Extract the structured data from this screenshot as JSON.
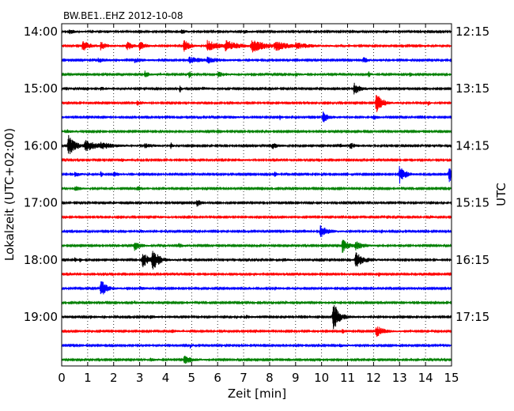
{
  "chart_data": {
    "type": "line",
    "title": "BW.BE1..EHZ 2012-10-08",
    "xlabel": "Zeit  [min]",
    "ylabel_left": "Lokalzeit (UTC+02:00)",
    "ylabel_right": "UTC",
    "xlim": [
      0,
      15
    ],
    "x_ticks": [
      "0",
      "1",
      "2",
      "3",
      "4",
      "5",
      "6",
      "7",
      "8",
      "9",
      "10",
      "11",
      "12",
      "13",
      "14",
      "15"
    ],
    "left_tick_labels": [
      "14:00",
      "15:00",
      "16:00",
      "17:00",
      "18:00",
      "19:00"
    ],
    "right_tick_labels": [
      "12:15",
      "13:15",
      "14:15",
      "15:15",
      "16:15",
      "17:15"
    ],
    "grid": true,
    "trace_minutes": 15,
    "color_cycle": [
      "#000000",
      "#ff0000",
      "#0000ff",
      "#008000"
    ],
    "traces": [
      {
        "events": [
          [
            0.3,
            3,
            0.2
          ],
          [
            1.7,
            2,
            0.15
          ],
          [
            4.6,
            2.5,
            0.2
          ],
          [
            7.0,
            2,
            0.2
          ],
          [
            12.5,
            1.5,
            0.15
          ]
        ]
      },
      {
        "events": [
          [
            0.8,
            7,
            0.25
          ],
          [
            1.5,
            5,
            0.2
          ],
          [
            2.5,
            6,
            0.2
          ],
          [
            3.0,
            5,
            0.2
          ],
          [
            4.7,
            8,
            0.2
          ],
          [
            5.6,
            7,
            0.4
          ],
          [
            6.3,
            7,
            0.4
          ],
          [
            7.3,
            8,
            0.5
          ],
          [
            8.2,
            5,
            0.5
          ],
          [
            9.0,
            3,
            0.5
          ]
        ]
      },
      {
        "events": [
          [
            1.4,
            3,
            0.3
          ],
          [
            2.8,
            3,
            0.3
          ],
          [
            4.9,
            4,
            0.5
          ],
          [
            5.6,
            3,
            0.4
          ],
          [
            11.6,
            4,
            0.15
          ]
        ]
      },
      {
        "events": [
          [
            3.2,
            4,
            0.15
          ],
          [
            4.9,
            5,
            0.08
          ],
          [
            6.0,
            3,
            0.3
          ],
          [
            9.0,
            2,
            0.2
          ],
          [
            11.8,
            4,
            0.08
          ],
          [
            13.4,
            3,
            0.08
          ]
        ]
      },
      {
        "events": [
          [
            4.55,
            5,
            0.06
          ],
          [
            11.25,
            8,
            0.2
          ],
          [
            5.4,
            2,
            0.2
          ],
          [
            1.5,
            2,
            0.2
          ]
        ]
      },
      {
        "events": [
          [
            2.9,
            3,
            0.2
          ],
          [
            12.1,
            14,
            0.2
          ],
          [
            14.1,
            4,
            0.06
          ]
        ]
      },
      {
        "events": [
          [
            1.5,
            2,
            0.2
          ],
          [
            6.5,
            2,
            0.2
          ],
          [
            8.4,
            4,
            0.06
          ],
          [
            10.05,
            7,
            0.2
          ],
          [
            12.0,
            3,
            0.15
          ]
        ]
      },
      {
        "events": [
          [
            0.2,
            2,
            0.2
          ],
          [
            6.0,
            2,
            0.2
          ]
        ]
      },
      {
        "events": [
          [
            0.25,
            14,
            0.25
          ],
          [
            0.9,
            6,
            0.5
          ],
          [
            1.5,
            3,
            0.4
          ],
          [
            3.2,
            3,
            0.3
          ],
          [
            4.2,
            4,
            0.06
          ],
          [
            8.1,
            4,
            0.2
          ],
          [
            11.1,
            4,
            0.2
          ],
          [
            10.7,
            3,
            0.1
          ]
        ]
      },
      {
        "events": [
          [
            2.3,
            2,
            0.2
          ],
          [
            6.8,
            2,
            0.2
          ]
        ]
      },
      {
        "events": [
          [
            0.5,
            3,
            0.2
          ],
          [
            1.5,
            4,
            0.06
          ],
          [
            2.0,
            3,
            0.2
          ],
          [
            8.2,
            4,
            0.06
          ],
          [
            13.0,
            12,
            0.2
          ],
          [
            14.9,
            10,
            0.2
          ]
        ]
      },
      {
        "events": [
          [
            0.5,
            3,
            0.2
          ],
          [
            2.9,
            3,
            0.2
          ],
          [
            3.9,
            2,
            0.1
          ]
        ]
      },
      {
        "events": [
          [
            2.0,
            2,
            0.1
          ],
          [
            3.0,
            2,
            0.1
          ],
          [
            5.2,
            5,
            0.15
          ],
          [
            9.8,
            1.5,
            0.2
          ]
        ]
      },
      {
        "events": [
          [
            3.7,
            1.5,
            0.2
          ],
          [
            14.2,
            2,
            0.08
          ]
        ]
      },
      {
        "events": [
          [
            3.0,
            2,
            0.2
          ],
          [
            9.3,
            2,
            0.2
          ],
          [
            9.95,
            8,
            0.25
          ],
          [
            12.3,
            2,
            0.1
          ]
        ]
      },
      {
        "events": [
          [
            2.8,
            6,
            0.2
          ],
          [
            4.5,
            3,
            0.15
          ],
          [
            10.8,
            9,
            0.2
          ],
          [
            11.3,
            5,
            0.3
          ]
        ]
      },
      {
        "events": [
          [
            0.5,
            3,
            0.06
          ],
          [
            0.7,
            3,
            0.06
          ],
          [
            3.1,
            10,
            0.25
          ],
          [
            3.5,
            14,
            0.2
          ],
          [
            8.5,
            2,
            0.2
          ],
          [
            11.3,
            10,
            0.3
          ],
          [
            14.3,
            2,
            0.1
          ]
        ]
      },
      {
        "events": [
          [
            7.4,
            2,
            0.1
          ],
          [
            12.2,
            3,
            0.06
          ]
        ]
      },
      {
        "events": [
          [
            1.5,
            12,
            0.2
          ],
          [
            3.0,
            2,
            0.2
          ],
          [
            8.2,
            2,
            0.2
          ]
        ]
      },
      {
        "events": [
          [
            2.8,
            2,
            0.08
          ],
          [
            8.6,
            3,
            0.06
          ],
          [
            10.0,
            2,
            0.06
          ]
        ]
      },
      {
        "events": [
          [
            10.45,
            24,
            0.08
          ],
          [
            10.55,
            7,
            0.3
          ],
          [
            1.1,
            2,
            0.2
          ],
          [
            3.4,
            2,
            0.2
          ],
          [
            7.1,
            2,
            0.2
          ]
        ]
      },
      {
        "events": [
          [
            4.2,
            2,
            0.2
          ],
          [
            10.8,
            3,
            0.1
          ],
          [
            12.1,
            8,
            0.25
          ]
        ]
      },
      {
        "events": [
          [
            3.2,
            1.5,
            0.1
          ],
          [
            4.95,
            3,
            0.06
          ],
          [
            10.7,
            2,
            0.2
          ]
        ]
      },
      {
        "events": [
          [
            3.4,
            2,
            0.2
          ],
          [
            4.7,
            6,
            0.25
          ]
        ]
      }
    ]
  }
}
